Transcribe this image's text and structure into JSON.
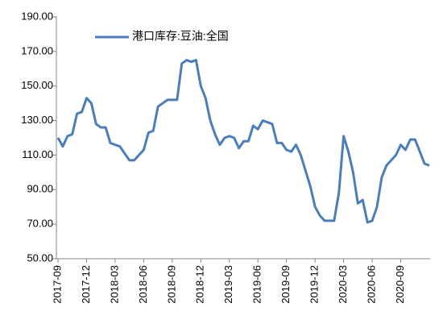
{
  "chart_data": {
    "type": "line",
    "categories": [
      "2017-09",
      null,
      null,
      null,
      null,
      null,
      "2017-12",
      null,
      null,
      null,
      null,
      null,
      "2018-03",
      null,
      null,
      null,
      null,
      null,
      "2018-06",
      null,
      null,
      null,
      null,
      null,
      "2018-09",
      null,
      null,
      null,
      null,
      null,
      "2018-12",
      null,
      null,
      null,
      null,
      null,
      "2019-03",
      null,
      null,
      null,
      null,
      null,
      "2019-06",
      null,
      null,
      null,
      null,
      null,
      "2019-09",
      null,
      null,
      null,
      null,
      null,
      "2019-12",
      null,
      null,
      null,
      null,
      null,
      "2020-03",
      null,
      null,
      null,
      null,
      null,
      "2020-06",
      null,
      null,
      null,
      null,
      null,
      "2020-09",
      null,
      null,
      null,
      null,
      null,
      null
    ],
    "series": [
      {
        "name": "港口库存:豆油:全国",
        "color": "#4a7ebb",
        "values": [
          120,
          115,
          121,
          122,
          134,
          135,
          143,
          140,
          128,
          126,
          126,
          117,
          116,
          115,
          111,
          107,
          107,
          110,
          113,
          123,
          124,
          138,
          140,
          142,
          142,
          142,
          163,
          165,
          164,
          165,
          150,
          143,
          130,
          122,
          116,
          120,
          121,
          120,
          114,
          118,
          118,
          127,
          125,
          130,
          129,
          128,
          117,
          117,
          113,
          112,
          116,
          110,
          101,
          92,
          80,
          75,
          72,
          72,
          72,
          88,
          121,
          112,
          100,
          82,
          84,
          71,
          72,
          80,
          97,
          104,
          107,
          110,
          116,
          113,
          119,
          119,
          112,
          105,
          104
        ]
      }
    ],
    "ylim": [
      50,
      190
    ],
    "yticks": [
      {
        "value": 50,
        "label": "50.00"
      },
      {
        "value": 70,
        "label": "70.00"
      },
      {
        "value": 90,
        "label": "90.00"
      },
      {
        "value": 110,
        "label": "110.00"
      },
      {
        "value": 130,
        "label": "130.00"
      },
      {
        "value": 150,
        "label": "150.00"
      },
      {
        "value": 170,
        "label": "170.00"
      },
      {
        "value": 190,
        "label": "190.00"
      }
    ],
    "grid": false
  }
}
